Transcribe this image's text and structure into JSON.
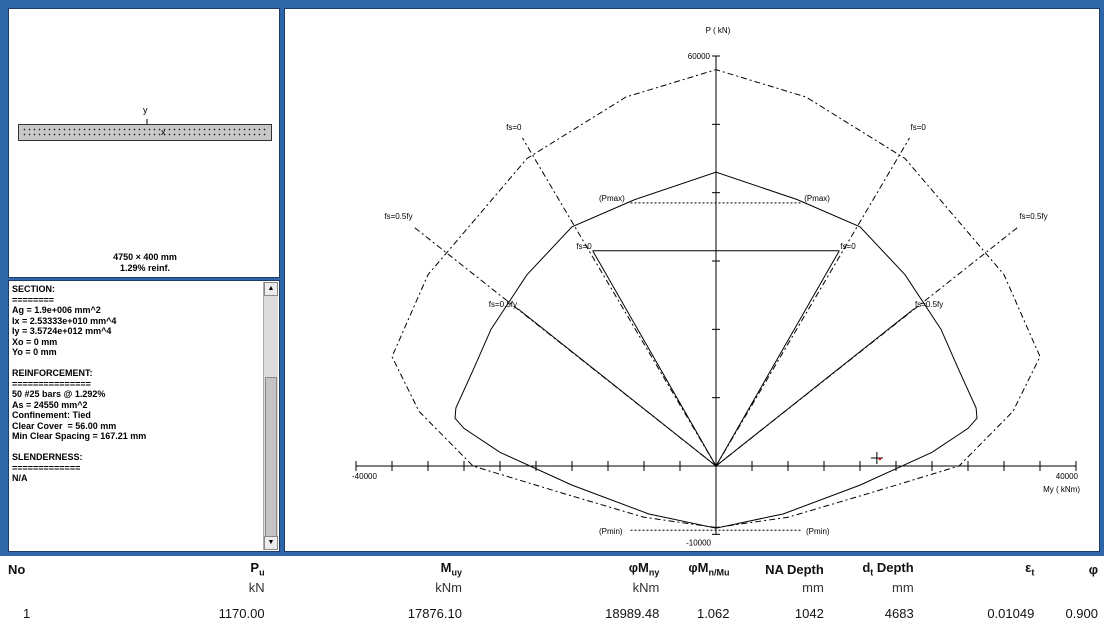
{
  "section_view": {
    "y_axis_label": "y",
    "x_axis_label": "x",
    "dimensions": "4750 × 400 mm",
    "reinforcement_ratio": "1.29% reinf."
  },
  "info_panel": {
    "lines": [
      "SECTION:",
      "========",
      "Ag = 1.9e+006 mm^2",
      "Ix = 2.53333e+010 mm^4",
      "Iy = 3.5724e+012 mm^4",
      "Xo = 0 mm",
      "Yo = 0 mm",
      "",
      "REINFORCEMENT:",
      "===============",
      "50 #25 bars @ 1.292%",
      "As = 24550 mm^2",
      "Confinement: Tied",
      "Clear Cover  = 56.00 mm",
      "Min Clear Spacing = 167.21 mm",
      "",
      "SLENDERNESS:",
      "=============",
      "N/A"
    ],
    "scroll_up": "▲",
    "scroll_down": "▼"
  },
  "diagram": {
    "p_axis_label": "P ( kN)",
    "m_axis_label": "My ( kNm)",
    "p_max_tick": "60000",
    "p_min_tick": "-10000",
    "m_min_tick": "-40000",
    "m_max_tick": "40000",
    "labels": {
      "fs0": "fs=0",
      "fs05": "fs=0.5fy",
      "pmax": "(Pmax)",
      "pmin": "(Pmin)"
    }
  },
  "chart_data": {
    "type": "line",
    "x_label": "My ( kNm)",
    "y_label": "P ( kN)",
    "xlim": [
      -40000,
      40000
    ],
    "ylim": [
      -10000,
      60000
    ],
    "series": [
      {
        "role": "nominal",
        "x": [
          0,
          9000,
          16000,
          21000,
          25000,
          27000,
          28900,
          29000,
          28000,
          24000,
          16000,
          7500,
          0
        ],
        "y": [
          43000,
          39000,
          35000,
          28000,
          20000,
          14000,
          8500,
          7000,
          5500,
          2000,
          -2800,
          -7000,
          -9100
        ]
      },
      {
        "role": "factored",
        "x": [
          0,
          10000,
          21000,
          32000,
          36000,
          33000,
          27000,
          17000,
          8000,
          0
        ],
        "y": [
          58000,
          54000,
          45000,
          28000,
          16000,
          8000,
          0,
          -4000,
          -7500,
          -9000
        ]
      }
    ],
    "marker": {
      "x": 17876.1,
      "y": 1170
    }
  },
  "table": {
    "headers": [
      "No",
      "P",
      "M",
      "φM",
      "φM",
      "NA Depth",
      "d",
      "ε",
      "φ"
    ],
    "header_subs": [
      "",
      "u",
      "uy",
      "ny",
      "n/M",
      "",
      "t",
      "t",
      ""
    ],
    "header_tail": [
      "",
      "",
      "",
      "",
      "u",
      "",
      " Depth",
      "",
      ""
    ],
    "units": [
      "",
      "kN",
      "kNm",
      "kNm",
      "",
      "mm",
      "mm",
      "",
      ""
    ],
    "rows": [
      [
        "1",
        "1170.00",
        "17876.10",
        "18989.48",
        "1.062",
        "1042",
        "4683",
        "0.01049",
        "0.900"
      ]
    ]
  }
}
